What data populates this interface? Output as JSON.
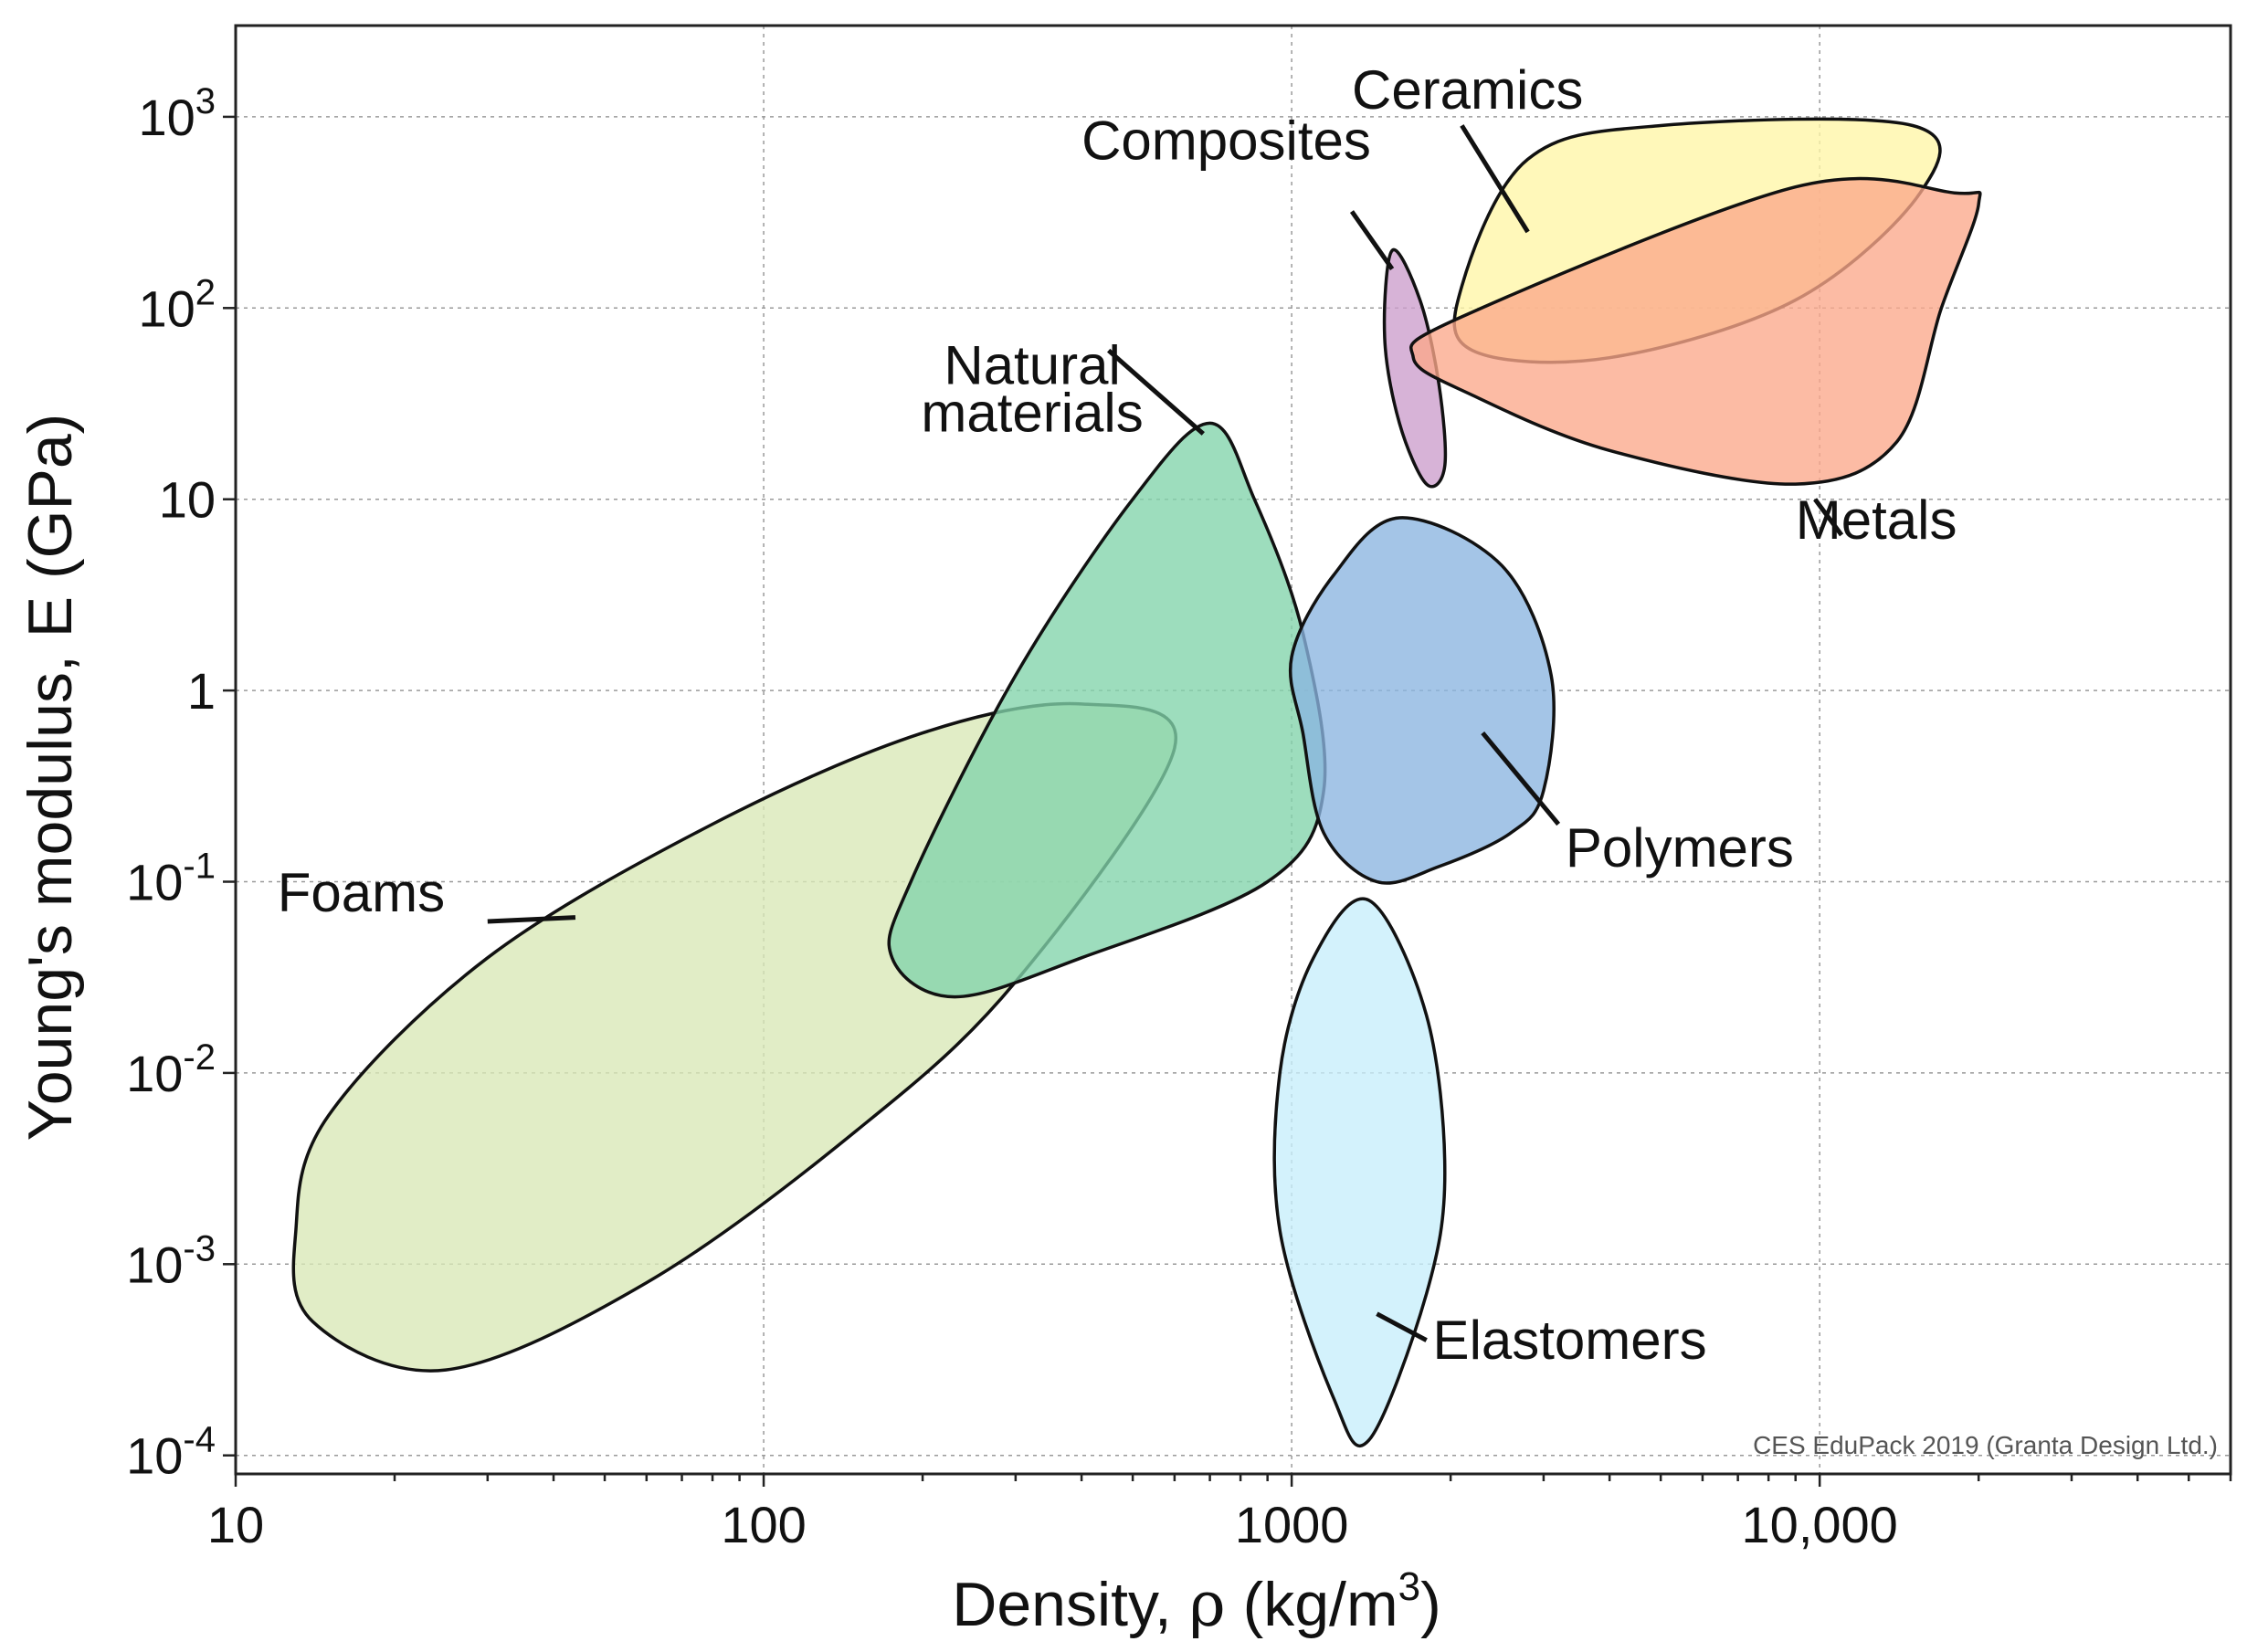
{
  "chart_data": {
    "type": "bubble_region",
    "title": "",
    "xlabel": "Density, ρ  (kg/m³)",
    "xlabel_parts": {
      "prefix": "Density, ",
      "symbol": "ρ",
      "unit": "  (kg/m",
      "sup": "3",
      "close": ")"
    },
    "ylabel": "Young's modulus, E (GPa)",
    "x_scale": "log",
    "y_scale": "log",
    "xlim": [
      10,
      60000
    ],
    "ylim": [
      8e-05,
      3000
    ],
    "grid": true,
    "x_ticks": [
      {
        "value": 10,
        "label": "10"
      },
      {
        "value": 100,
        "label": "100"
      },
      {
        "value": 1000,
        "label": "1000"
      },
      {
        "value": 10000,
        "label": "10,000"
      }
    ],
    "y_ticks": [
      {
        "value": 0.0001,
        "base": "10",
        "exp": "-4"
      },
      {
        "value": 0.001,
        "base": "10",
        "exp": "-3"
      },
      {
        "value": 0.01,
        "base": "10",
        "exp": "-2"
      },
      {
        "value": 0.1,
        "base": "10",
        "exp": "-1"
      },
      {
        "value": 1,
        "base": "1",
        "exp": ""
      },
      {
        "value": 10,
        "base": "10",
        "exp": ""
      },
      {
        "value": 100,
        "base": "10",
        "exp": "2"
      },
      {
        "value": 1000,
        "base": "10",
        "exp": "3"
      }
    ],
    "credit": "CES EduPack 2019 (Granta Design Ltd.)",
    "regions": [
      {
        "name": "Foams",
        "label": "Foams",
        "color": "#d8e8b6",
        "outline": [
          [
            14,
            0.0005
          ],
          [
            25,
            0.00028
          ],
          [
            60,
            0.0008
          ],
          [
            150,
            0.005
          ],
          [
            300,
            0.03
          ],
          [
            600,
            0.5
          ],
          [
            400,
            0.85
          ],
          [
            200,
            0.6
          ],
          [
            80,
            0.2
          ],
          [
            30,
            0.04
          ],
          [
            15,
            0.006
          ],
          [
            13,
            0.0015
          ]
        ],
        "label_at": [
          12,
          0.07
        ],
        "pointer": [
          [
            30,
            0.062
          ],
          [
            44,
            0.065
          ]
        ]
      },
      {
        "name": "Natural materials",
        "label": [
          "Natural",
          "materials"
        ],
        "color": "#82d4aa",
        "outline": [
          [
            230,
            0.025
          ],
          [
            400,
            0.04
          ],
          [
            900,
            0.1
          ],
          [
            1150,
            0.3
          ],
          [
            1050,
            2
          ],
          [
            850,
            10
          ],
          [
            700,
            25
          ],
          [
            500,
            10
          ],
          [
            300,
            1.2
          ],
          [
            190,
            0.1
          ],
          [
            175,
            0.04
          ]
        ],
        "label_at": [
          200,
          40
        ],
        "pointer": [
          [
            450,
            60
          ],
          [
            680,
            22
          ]
        ]
      },
      {
        "name": "Composites",
        "label": "Composites",
        "color": "#cc9ecc",
        "outline": [
          [
            1550,
            200
          ],
          [
            1750,
            110
          ],
          [
            1900,
            40
          ],
          [
            1950,
            15
          ],
          [
            1800,
            12
          ],
          [
            1600,
            25
          ],
          [
            1500,
            70
          ]
        ],
        "label_at": [
          400,
          600
        ],
        "pointer": [
          [
            1300,
            320
          ],
          [
            1550,
            160
          ]
        ]
      },
      {
        "name": "Ceramics",
        "label": "Ceramics",
        "color": "#fff6a6",
        "outline": [
          [
            2800,
            600
          ],
          [
            5000,
            900
          ],
          [
            15000,
            900
          ],
          [
            15500,
            400
          ],
          [
            9000,
            110
          ],
          [
            4000,
            55
          ],
          [
            2200,
            60
          ],
          [
            2100,
            130
          ]
        ],
        "label_at": [
          1300,
          1100
        ],
        "pointer": [
          [
            2100,
            900
          ],
          [
            2800,
            250
          ]
        ]
      },
      {
        "name": "Metals",
        "label": "Metals",
        "color": "#fba88a",
        "outline": [
          [
            2100,
            90
          ],
          [
            9000,
            430
          ],
          [
            18000,
            400
          ],
          [
            20000,
            350
          ],
          [
            17000,
            100
          ],
          [
            14000,
            20
          ],
          [
            9000,
            12
          ],
          [
            4000,
            18
          ],
          [
            2200,
            35
          ],
          [
            1700,
            55
          ]
        ],
        "label_at": [
          9000,
          6.2
        ],
        "pointer": [
          [
            9800,
            10
          ],
          [
            11000,
            6.5
          ]
        ]
      },
      {
        "name": "Polymers",
        "label": "Polymers",
        "color": "#8bb5e0",
        "outline": [
          [
            1600,
            8
          ],
          [
            2500,
            4.5
          ],
          [
            3100,
            1.2
          ],
          [
            3000,
            0.3
          ],
          [
            2600,
            0.18
          ],
          [
            1900,
            0.12
          ],
          [
            1450,
            0.1
          ],
          [
            1150,
            0.18
          ],
          [
            1050,
            0.6
          ],
          [
            1000,
            1.5
          ],
          [
            1200,
            4
          ]
        ],
        "label_at": [
          3300,
          0.12
        ],
        "pointer": [
          [
            2300,
            0.6
          ],
          [
            3200,
            0.2
          ]
        ]
      },
      {
        "name": "Elastomers",
        "label": "Elastomers",
        "color": "#c7eefb",
        "outline": [
          [
            1400,
            0.08
          ],
          [
            1800,
            0.02
          ],
          [
            1950,
            0.003
          ],
          [
            1800,
            0.0007
          ],
          [
            1400,
            0.00012
          ],
          [
            1200,
            0.0002
          ],
          [
            950,
            0.0015
          ],
          [
            950,
            0.01
          ],
          [
            1100,
            0.04
          ]
        ],
        "label_at": [
          1850,
          0.00032
        ],
        "pointer": [
          [
            1450,
            0.00055
          ],
          [
            1800,
            0.0004
          ]
        ]
      }
    ]
  }
}
